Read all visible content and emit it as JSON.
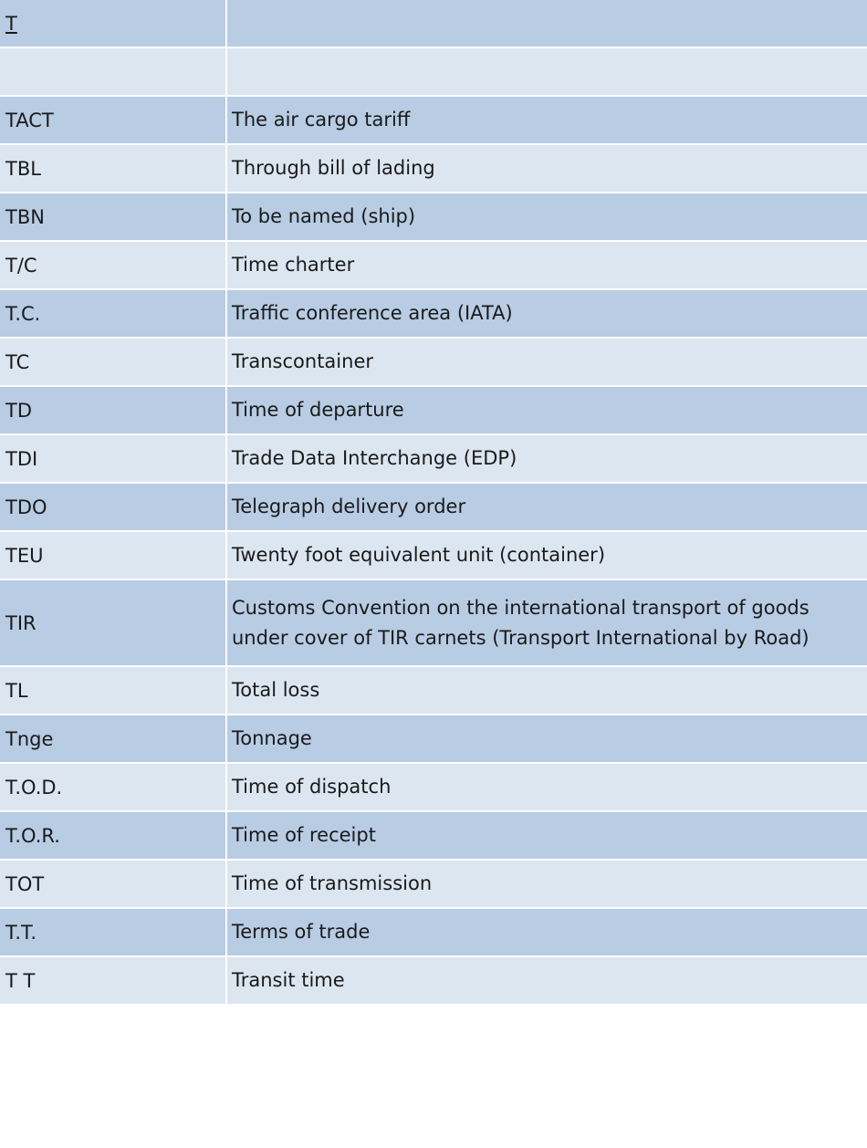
{
  "section": {
    "letter": "T"
  },
  "entries": [
    {
      "abbr": "TACT",
      "meaning": "The air cargo tariff"
    },
    {
      "abbr": "TBL",
      "meaning": "Through bill of lading"
    },
    {
      "abbr": "TBN",
      "meaning": "To be named (ship)"
    },
    {
      "abbr": "T/C",
      "meaning": "Time charter"
    },
    {
      "abbr": "T.C.",
      "meaning": "Traffic conference area (IATA)"
    },
    {
      "abbr": "TC",
      "meaning": "Transcontainer"
    },
    {
      "abbr": "TD",
      "meaning": "Time of departure"
    },
    {
      "abbr": "TDI",
      "meaning": "Trade Data Interchange (EDP)"
    },
    {
      "abbr": "TDO",
      "meaning": "Telegraph delivery order"
    },
    {
      "abbr": "TEU",
      "meaning": "Twenty foot equivalent unit (container)"
    },
    {
      "abbr": "TIR",
      "meaning": "Customs Convention on the international transport of goods\n under cover of TIR carnets (Transport International by Road)"
    },
    {
      "abbr": "TL",
      "meaning": "Total loss"
    },
    {
      "abbr": "Tnge",
      "meaning": "Tonnage"
    },
    {
      "abbr": "T.O.D.",
      "meaning": "Time of dispatch"
    },
    {
      "abbr": "T.O.R.",
      "meaning": "Time of receipt"
    },
    {
      "abbr": "TOT",
      "meaning": "Time of transmission"
    },
    {
      "abbr": "T.T.",
      "meaning": "Terms of trade"
    },
    {
      "abbr": "T T",
      "meaning": "Transit time"
    }
  ],
  "colors": {
    "dark_row": "#b8cce4",
    "light_row": "#dce6f1"
  }
}
